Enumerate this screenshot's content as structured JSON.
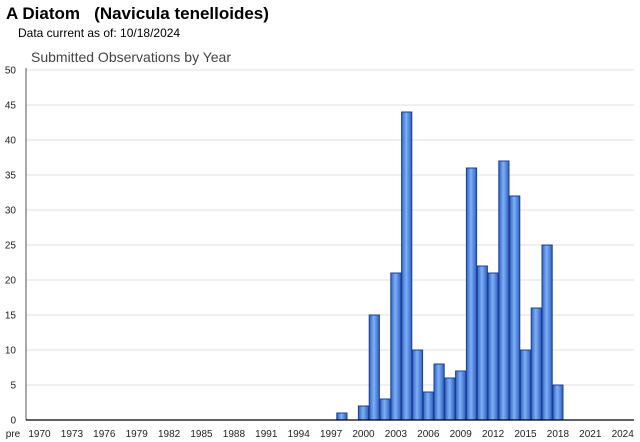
{
  "header": {
    "title": "A Diatom   (Navicula tenelloides)",
    "subtitle": "Data current as of: 10/18/2024"
  },
  "chart_data": {
    "type": "bar",
    "title": "Submitted Observations by Year",
    "xlabel": "",
    "ylabel": "",
    "ylim": [
      0,
      50
    ],
    "yticks": [
      0,
      5,
      10,
      15,
      20,
      25,
      30,
      35,
      40,
      45,
      50
    ],
    "xticks": [
      "pre",
      "1970",
      "1973",
      "1976",
      "1979",
      "1982",
      "1985",
      "1988",
      "1991",
      "1994",
      "1997",
      "2000",
      "2003",
      "2006",
      "2009",
      "2012",
      "2015",
      "2018",
      "2021",
      "2024"
    ],
    "grid": true,
    "bar_color": "#4f86e0",
    "bars": [
      {
        "year": 1998,
        "value": 1
      },
      {
        "year": 2000,
        "value": 2
      },
      {
        "year": 2001,
        "value": 15
      },
      {
        "year": 2002,
        "value": 3
      },
      {
        "year": 2003,
        "value": 21
      },
      {
        "year": 2004,
        "value": 44
      },
      {
        "year": 2005,
        "value": 10
      },
      {
        "year": 2006,
        "value": 4
      },
      {
        "year": 2007,
        "value": 8
      },
      {
        "year": 2008,
        "value": 6
      },
      {
        "year": 2009,
        "value": 7
      },
      {
        "year": 2010,
        "value": 36
      },
      {
        "year": 2011,
        "value": 22
      },
      {
        "year": 2012,
        "value": 21
      },
      {
        "year": 2013,
        "value": 37
      },
      {
        "year": 2014,
        "value": 32
      },
      {
        "year": 2015,
        "value": 10
      },
      {
        "year": 2016,
        "value": 16
      },
      {
        "year": 2017,
        "value": 25
      },
      {
        "year": 2018,
        "value": 5
      }
    ]
  }
}
